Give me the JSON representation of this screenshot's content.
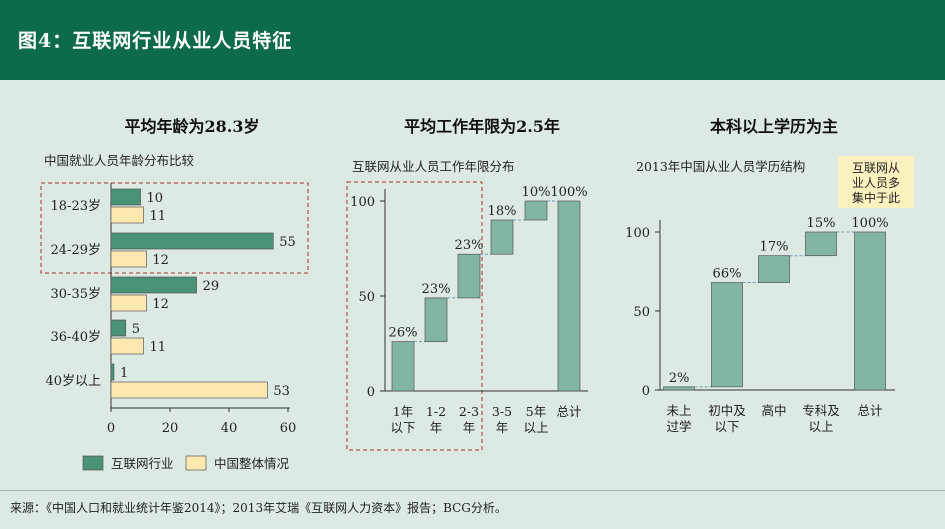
{
  "header": {
    "title": "图4：互联网行业从业人员特征"
  },
  "colors": {
    "header_bg": "#0e6b4a",
    "bg": "#ddeae3",
    "internet": "#4a9276",
    "overall": "#fde9b0",
    "waterfall": "#82b5a5",
    "highlight_border": "#b0303a",
    "callout_bg": "#fdf1c0"
  },
  "panels": {
    "age": {
      "title": "平均年龄为28.3岁"
    },
    "tenure": {
      "title": "平均工作年限为2.5年"
    },
    "edu": {
      "title": "本科以上学历为主"
    }
  },
  "footer": {
    "source": "来源：《中国人口和就业统计年鉴2014》；2013年艾瑞《互联网人力资本》报告；BCG分析。"
  },
  "chart_data": [
    {
      "type": "bar",
      "orientation": "horizontal",
      "subtitle": "中国就业人员年龄分布比较",
      "categories": [
        "18-23岁",
        "24-29岁",
        "30-35岁",
        "36-40岁",
        "40岁以上"
      ],
      "series": [
        {
          "name": "互联网行业",
          "values": [
            10,
            55,
            29,
            5,
            1
          ]
        },
        {
          "name": "中国整体情况",
          "values": [
            11,
            12,
            12,
            11,
            53
          ]
        }
      ],
      "xlim": [
        0,
        60
      ],
      "xticks": [
        "0",
        "20",
        "40",
        "60"
      ],
      "highlighted_categories": [
        "18-23岁",
        "24-29岁"
      ],
      "legend": "bottom"
    },
    {
      "type": "waterfall",
      "subtitle": "互联网从业人员工作年限分布",
      "categories": [
        "1年\n以下",
        "1-2\n年",
        "2-3\n年",
        "3-5\n年",
        "5年\n以上",
        "总计"
      ],
      "values": [
        26,
        23,
        23,
        18,
        10,
        100
      ],
      "labels": [
        "26%",
        "23%",
        "23%",
        "18%",
        "10%",
        "100%"
      ],
      "ylim": [
        0,
        100
      ],
      "yticks": [
        "0",
        "50",
        "100"
      ],
      "highlighted_categories": [
        "1年\n以下",
        "1-2\n年",
        "2-3\n年"
      ]
    },
    {
      "type": "waterfall",
      "subtitle": "2013年中国从业人员学历结构",
      "callout": "互联网从\n业人员多\n集中于此",
      "categories": [
        "未上\n过学",
        "初中及\n以下",
        "高中",
        "专科及\n以上",
        "总计"
      ],
      "values": [
        2,
        66,
        17,
        15,
        100
      ],
      "labels": [
        "2%",
        "66%",
        "17%",
        "15%",
        "100%"
      ],
      "ylim": [
        0,
        100
      ],
      "yticks": [
        "0",
        "50",
        "100"
      ]
    }
  ]
}
